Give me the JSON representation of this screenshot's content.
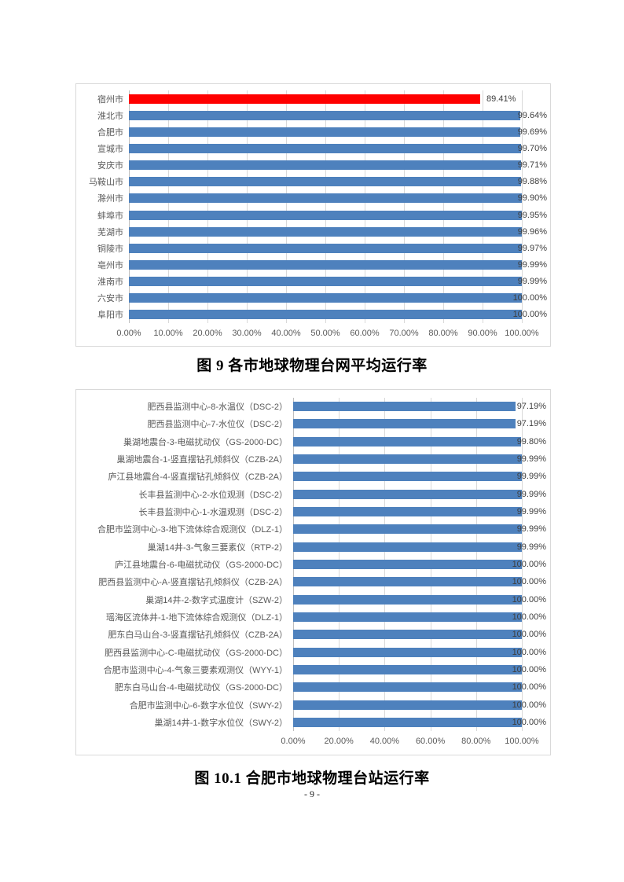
{
  "page": {
    "number": "- 9 -"
  },
  "figure9": {
    "caption": "图 9 各市地球物理台网平均运行率"
  },
  "figure10_1": {
    "caption": "图 10.1 合肥市地球物理台站运行率"
  },
  "colors": {
    "bar_blue": "#4E81BD",
    "bar_red_highlight": "#FF0000",
    "gridline": "#D9D9D9",
    "axis_line": "#BFBFBF",
    "axis_text": "#595959",
    "value_text": "#3F3F3F"
  },
  "chart_data": [
    {
      "id": "fig9",
      "type": "bar",
      "orientation": "horizontal",
      "title": "",
      "xlabel": "",
      "ylabel": "",
      "grid": true,
      "legend": false,
      "xlim": [
        0,
        100
      ],
      "x_ticks": [
        "0.00%",
        "10.00%",
        "20.00%",
        "30.00%",
        "40.00%",
        "50.00%",
        "60.00%",
        "70.00%",
        "80.00%",
        "90.00%",
        "100.00%"
      ],
      "categories": [
        "宿州市",
        "淮北市",
        "合肥市",
        "宣城市",
        "安庆市",
        "马鞍山市",
        "滁州市",
        "蚌埠市",
        "芜湖市",
        "铜陵市",
        "亳州市",
        "淮南市",
        "六安市",
        "阜阳市"
      ],
      "values": [
        89.41,
        99.64,
        99.69,
        99.7,
        99.71,
        99.88,
        99.9,
        99.95,
        99.96,
        99.97,
        99.99,
        99.99,
        100.0,
        100.0
      ],
      "value_labels": [
        "89.41%",
        "99.64%",
        "99.69%",
        "99.70%",
        "99.71%",
        "99.88%",
        "99.90%",
        "99.95%",
        "99.96%",
        "99.97%",
        "99.99%",
        "99.99%",
        "100.00%",
        "100.00%"
      ],
      "bar_color": "#4E81BD",
      "highlight_index": 0,
      "highlight_color": "#FF0000"
    },
    {
      "id": "fig10_1",
      "type": "bar",
      "orientation": "horizontal",
      "title": "",
      "xlabel": "",
      "ylabel": "",
      "grid": true,
      "legend": false,
      "xlim": [
        0,
        100
      ],
      "x_ticks": [
        "0.00%",
        "20.00%",
        "40.00%",
        "60.00%",
        "80.00%",
        "100.00%"
      ],
      "categories": [
        "肥西县监测中心-8-水温仪（DSC-2）",
        "肥西县监测中心-7-水位仪（DSC-2）",
        "巢湖地震台-3-电磁扰动仪（GS-2000-DC）",
        "巢湖地震台-1-竖直摆钻孔倾斜仪（CZB-2A）",
        "庐江县地震台-4-竖直摆钻孔倾斜仪（CZB-2A）",
        "长丰县监测中心-2-水位观测（DSC-2）",
        "长丰县监测中心-1-水温观测（DSC-2）",
        "合肥市监测中心-3-地下流体综合观测仪（DLZ-1）",
        "巢湖14井-3-气象三要素仪（RTP-2）",
        "庐江县地震台-6-电磁扰动仪（GS-2000-DC）",
        "肥西县监测中心-A-竖直摆钻孔倾斜仪（CZB-2A）",
        "巢湖14井-2-数字式温度计（SZW-2）",
        "瑶海区流体井-1-地下流体综合观测仪（DLZ-1）",
        "肥东白马山台-3-竖直摆钻孔倾斜仪（CZB-2A）",
        "肥西县监测中心-C-电磁扰动仪（GS-2000-DC）",
        "合肥市监测中心-4-气象三要素观测仪（WYY-1）",
        "肥东白马山台-4-电磁扰动仪（GS-2000-DC）",
        "合肥市监测中心-6-数字水位仪（SWY-2）",
        "巢湖14井-1-数字水位仪（SWY-2）"
      ],
      "values": [
        97.19,
        97.19,
        99.8,
        99.99,
        99.99,
        99.99,
        99.99,
        99.99,
        99.99,
        100.0,
        100.0,
        100.0,
        100.0,
        100.0,
        100.0,
        100.0,
        100.0,
        100.0,
        100.0
      ],
      "value_labels": [
        "97.19%",
        "97.19%",
        "99.80%",
        "99.99%",
        "99.99%",
        "99.99%",
        "99.99%",
        "99.99%",
        "99.99%",
        "100.00%",
        "100.00%",
        "100.00%",
        "100.00%",
        "100.00%",
        "100.00%",
        "100.00%",
        "100.00%",
        "100.00%",
        "100.00%"
      ],
      "bar_color": "#4E81BD",
      "highlight_index": -1,
      "highlight_color": "#FF0000"
    }
  ]
}
